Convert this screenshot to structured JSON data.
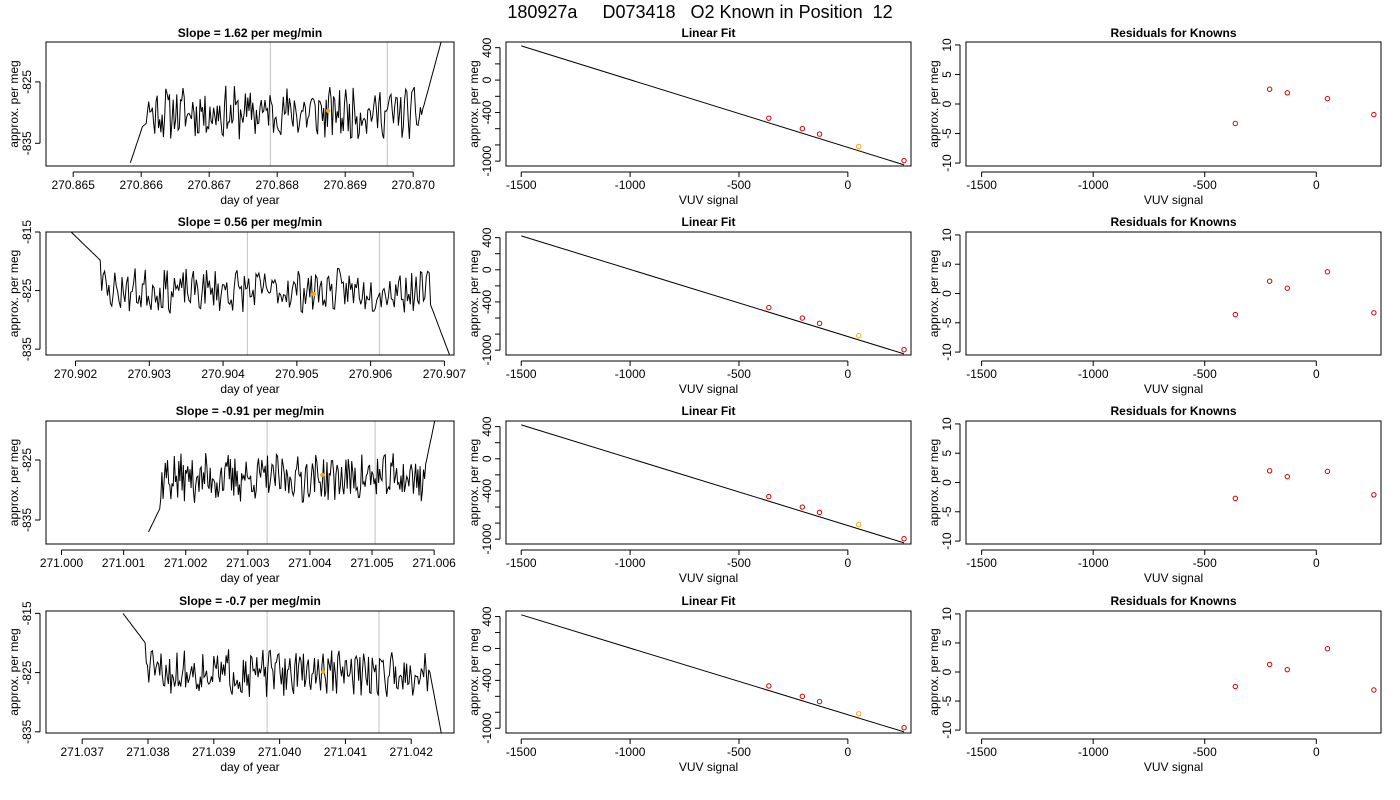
{
  "page_title": "180927a     D073418   O2 Known in Position  12",
  "colors": {
    "line": "#000000",
    "known_point": "#cc0000",
    "highlight_point": "#ffa500",
    "window_line": "#cccccc"
  },
  "chart_data": [
    {
      "type": "line",
      "title": "Slope =  1.62  per meg/min",
      "xlabel": "day of year",
      "ylabel": "approx. per meg",
      "xlim": [
        270.8646,
        270.8706
      ],
      "ylim": [
        -838.7,
        -818.5
      ],
      "x_ticks": [
        270.865,
        270.866,
        270.867,
        270.868,
        270.869,
        270.87
      ],
      "x_tick_labels": [
        "270.865",
        "270.866",
        "270.867",
        "270.868",
        "270.869",
        "270.870"
      ],
      "y_ticks": [
        -825,
        -835
      ],
      "y_tick_labels": [
        "-825",
        "-835"
      ],
      "vlines": [
        270.8679,
        270.86962
      ],
      "highlight_point": {
        "x": 270.86875,
        "y": -829.7
      },
      "series": {
        "x_start": 270.86584,
        "x_end": 270.87052,
        "y_start": -840,
        "y_end": -815,
        "mean": -830,
        "spread": 2.3,
        "settle_to": 0.04,
        "seed": 11,
        "lead_in": {
          "at": -838.2,
          "to": -832
        },
        "rise": {
          "from": 0.92,
          "to": -814
        }
      }
    },
    {
      "type": "scatter",
      "title": "Linear Fit",
      "xlabel": "VUV signal",
      "ylabel": "approx. per meg",
      "xlim": [
        -1570,
        290
      ],
      "ylim": [
        -1060,
        470
      ],
      "x_ticks": [
        -1500,
        -1000,
        -500,
        0
      ],
      "x_tick_labels": [
        "-1500",
        "-1000",
        "-500",
        "0"
      ],
      "y_ticks": [
        400,
        0,
        -400,
        -1000
      ],
      "y_tick_labels": [
        "400",
        "0",
        "-400",
        "-1000"
      ],
      "y_minor_ticks": [
        200,
        -200,
        -600,
        -800
      ],
      "fit_line": {
        "x": [
          -1500,
          258
        ],
        "y": [
          422,
          -1046
        ]
      },
      "points": [
        {
          "x": -363,
          "y": -470
        },
        {
          "x": -209,
          "y": -600
        },
        {
          "x": -130,
          "y": -666
        },
        {
          "x": 50,
          "y": -819,
          "highlight": true
        },
        {
          "x": 258,
          "y": -994
        }
      ]
    },
    {
      "type": "scatter",
      "title": "Residuals for Knowns",
      "xlabel": "VUV signal",
      "ylabel": "approx. per meg",
      "xlim": [
        -1570,
        290
      ],
      "ylim": [
        -10.5,
        10.5
      ],
      "x_ticks": [
        -1500,
        -1000,
        -500,
        0
      ],
      "x_tick_labels": [
        "-1500",
        "-1000",
        "-500",
        "0"
      ],
      "y_ticks": [
        10,
        5,
        0,
        -5,
        -10
      ],
      "y_tick_labels": [
        "10",
        "5",
        "0",
        "-5",
        "-10"
      ],
      "points": [
        {
          "x": -363,
          "y": -3.3
        },
        {
          "x": -209,
          "y": 2.5
        },
        {
          "x": -130,
          "y": 1.9
        },
        {
          "x": 50,
          "y": 0.9
        },
        {
          "x": 258,
          "y": -1.8
        }
      ]
    },
    {
      "type": "line",
      "title": "Slope =  0.56  per meg/min",
      "xlabel": "day of year",
      "ylabel": "approx. per meg",
      "xlim": [
        270.9016,
        270.90713
      ],
      "ylim": [
        -836.0,
        -815.0
      ],
      "x_ticks": [
        270.902,
        270.903,
        270.904,
        270.905,
        270.906,
        270.907
      ],
      "x_tick_labels": [
        "270.902",
        "270.903",
        "270.904",
        "270.905",
        "270.906",
        "270.907"
      ],
      "y_ticks": [
        -815,
        -825,
        -835
      ],
      "y_tick_labels": [
        "-815",
        "-825",
        "-835"
      ],
      "vlines": [
        270.90433,
        270.90612
      ],
      "highlight_point": {
        "x": 270.90523,
        "y": -825.6
      },
      "series": {
        "x_start": 270.90194,
        "x_end": 270.90707,
        "y_start": -815,
        "y_end": -836,
        "mean": -825,
        "spread": 2.0,
        "settle_to": 0.08,
        "seed": 23,
        "lead_in": {
          "at": -815,
          "to": -820
        },
        "rise": {
          "from": 0.95,
          "to": -836
        }
      }
    },
    {
      "type": "scatter",
      "title": "Linear Fit",
      "xlabel": "VUV signal",
      "ylabel": "approx. per meg",
      "xlim": [
        -1570,
        290
      ],
      "ylim": [
        -1060,
        470
      ],
      "x_ticks": [
        -1500,
        -1000,
        -500,
        0
      ],
      "x_tick_labels": [
        "-1500",
        "-1000",
        "-500",
        "0"
      ],
      "y_ticks": [
        400,
        0,
        -400,
        -1000
      ],
      "y_tick_labels": [
        "400",
        "0",
        "-400",
        "-1000"
      ],
      "y_minor_ticks": [
        200,
        -200,
        -600,
        -800
      ],
      "fit_line": {
        "x": [
          -1500,
          258
        ],
        "y": [
          422,
          -1046
        ]
      },
      "points": [
        {
          "x": -363,
          "y": -470
        },
        {
          "x": -209,
          "y": -600
        },
        {
          "x": -130,
          "y": -666
        },
        {
          "x": 50,
          "y": -819,
          "highlight": true
        },
        {
          "x": 258,
          "y": -994
        }
      ]
    },
    {
      "type": "scatter",
      "title": "Residuals for Knowns",
      "xlabel": "VUV signal",
      "ylabel": "approx. per meg",
      "xlim": [
        -1570,
        290
      ],
      "ylim": [
        -10.5,
        10.5
      ],
      "x_ticks": [
        -1500,
        -1000,
        -500,
        0
      ],
      "x_tick_labels": [
        "-1500",
        "-1000",
        "-500",
        "0"
      ],
      "y_ticks": [
        10,
        5,
        0,
        -5,
        -10
      ],
      "y_tick_labels": [
        "10",
        "5",
        "0",
        "-5",
        "-10"
      ],
      "points": [
        {
          "x": -363,
          "y": -3.6
        },
        {
          "x": -209,
          "y": 2.1
        },
        {
          "x": -130,
          "y": 0.9
        },
        {
          "x": 50,
          "y": 3.7
        },
        {
          "x": 258,
          "y": -3.3
        }
      ]
    },
    {
      "type": "line",
      "title": "Slope =  -0.91  per meg/min",
      "xlabel": "day of year",
      "ylabel": "approx. per meg",
      "xlim": [
        270.99975,
        271.00632
      ],
      "ylim": [
        -839.0,
        -818.5
      ],
      "x_ticks": [
        271.0,
        271.001,
        271.002,
        271.003,
        271.004,
        271.005,
        271.006
      ],
      "x_tick_labels": [
        "271.000",
        "271.001",
        "271.002",
        "271.003",
        "271.004",
        "271.005",
        "271.006"
      ],
      "y_ticks": [
        -825,
        -835
      ],
      "y_tick_labels": [
        "-825",
        "-835"
      ],
      "vlines": [
        271.00331,
        271.00505
      ],
      "highlight_point": {
        "x": 271.0042,
        "y": -827.5
      },
      "series": {
        "x_start": 271.0014,
        "x_end": 271.0061,
        "y_start": -840,
        "y_end": -814,
        "mean": -828,
        "spread": 2.2,
        "settle_to": 0.04,
        "seed": 37,
        "lead_in": {
          "at": -837,
          "to": -833
        },
        "rise": {
          "from": 0.95,
          "to": -814
        }
      }
    },
    {
      "type": "scatter",
      "title": "Linear Fit",
      "xlabel": "VUV signal",
      "ylabel": "approx. per meg",
      "xlim": [
        -1570,
        290
      ],
      "ylim": [
        -1060,
        470
      ],
      "x_ticks": [
        -1500,
        -1000,
        -500,
        0
      ],
      "x_tick_labels": [
        "-1500",
        "-1000",
        "-500",
        "0"
      ],
      "y_ticks": [
        400,
        0,
        -400,
        -1000
      ],
      "y_tick_labels": [
        "400",
        "0",
        "-400",
        "-1000"
      ],
      "y_minor_ticks": [
        200,
        -200,
        -600,
        -800
      ],
      "fit_line": {
        "x": [
          -1500,
          258
        ],
        "y": [
          422,
          -1046
        ]
      },
      "points": [
        {
          "x": -363,
          "y": -470
        },
        {
          "x": -209,
          "y": -600
        },
        {
          "x": -130,
          "y": -666
        },
        {
          "x": 50,
          "y": -819,
          "highlight": true
        },
        {
          "x": 258,
          "y": -994
        }
      ]
    },
    {
      "type": "scatter",
      "title": "Residuals for Knowns",
      "xlabel": "VUV signal",
      "ylabel": "approx. per meg",
      "xlim": [
        -1570,
        290
      ],
      "ylim": [
        -10.5,
        10.5
      ],
      "x_ticks": [
        -1500,
        -1000,
        -500,
        0
      ],
      "x_tick_labels": [
        "-1500",
        "-1000",
        "-500",
        "0"
      ],
      "y_ticks": [
        10,
        5,
        0,
        -5,
        -10
      ],
      "y_tick_labels": [
        "10",
        "5",
        "0",
        "-5",
        "-10"
      ],
      "points": [
        {
          "x": -363,
          "y": -2.7
        },
        {
          "x": -209,
          "y": 2.0
        },
        {
          "x": -130,
          "y": 1.0
        },
        {
          "x": 50,
          "y": 1.9
        },
        {
          "x": 258,
          "y": -2.1
        }
      ]
    },
    {
      "type": "line",
      "title": "Slope =  -0.7  per meg/min",
      "xlabel": "day of year",
      "ylabel": "approx. per meg",
      "xlim": [
        271.03645,
        271.04265
      ],
      "ylim": [
        -835.2,
        -814.6
      ],
      "x_ticks": [
        271.037,
        271.038,
        271.039,
        271.04,
        271.041,
        271.042
      ],
      "x_tick_labels": [
        "271.037",
        "271.038",
        "271.039",
        "271.040",
        "271.041",
        "271.042"
      ],
      "y_ticks": [
        -815,
        -825,
        -835
      ],
      "y_tick_labels": [
        "-815",
        "-825",
        "-835"
      ],
      "vlines": [
        271.03981,
        271.04151
      ],
      "highlight_point": {
        "x": 271.04066,
        "y": -824.9
      },
      "series": {
        "x_start": 271.03762,
        "x_end": 271.04247,
        "y_start": -815,
        "y_end": -836,
        "mean": -825,
        "spread": 2.1,
        "settle_to": 0.07,
        "seed": 51,
        "lead_in": {
          "at": -815,
          "to": -820
        },
        "rise": {
          "from": 0.96,
          "to": -836
        }
      }
    },
    {
      "type": "scatter",
      "title": "Linear Fit",
      "xlabel": "VUV signal",
      "ylabel": "approx. per meg",
      "xlim": [
        -1570,
        290
      ],
      "ylim": [
        -1060,
        470
      ],
      "x_ticks": [
        -1500,
        -1000,
        -500,
        0
      ],
      "x_tick_labels": [
        "-1500",
        "-1000",
        "-500",
        "0"
      ],
      "y_ticks": [
        400,
        0,
        -400,
        -1000
      ],
      "y_tick_labels": [
        "400",
        "0",
        "-400",
        "-1000"
      ],
      "y_minor_ticks": [
        200,
        -200,
        -600,
        -800
      ],
      "fit_line": {
        "x": [
          -1500,
          258
        ],
        "y": [
          422,
          -1046
        ]
      },
      "points": [
        {
          "x": -363,
          "y": -470
        },
        {
          "x": -209,
          "y": -600
        },
        {
          "x": -130,
          "y": -666
        },
        {
          "x": 50,
          "y": -819,
          "highlight": true
        },
        {
          "x": 258,
          "y": -994
        }
      ]
    },
    {
      "type": "scatter",
      "title": "Residuals for Knowns",
      "xlabel": "VUV signal",
      "ylabel": "approx. per meg",
      "xlim": [
        -1570,
        290
      ],
      "ylim": [
        -10.5,
        10.5
      ],
      "x_ticks": [
        -1500,
        -1000,
        -500,
        0
      ],
      "x_tick_labels": [
        "-1500",
        "-1000",
        "-500",
        "0"
      ],
      "y_ticks": [
        10,
        5,
        0,
        -5,
        -10
      ],
      "y_tick_labels": [
        "10",
        "5",
        "0",
        "-5",
        "-10"
      ],
      "points": [
        {
          "x": -363,
          "y": -2.5
        },
        {
          "x": -209,
          "y": 1.3
        },
        {
          "x": -130,
          "y": 0.4
        },
        {
          "x": 50,
          "y": 4.0
        },
        {
          "x": 258,
          "y": -3.1
        }
      ]
    }
  ]
}
